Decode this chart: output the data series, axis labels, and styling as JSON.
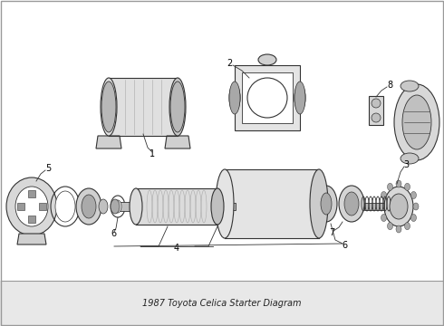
{
  "title": "1987 Toyota Celica Starter Diagram",
  "bg": "#f5f5f5",
  "lc": "#333333",
  "fc_light": "#e8e8e8",
  "fc_mid": "#c8c8c8",
  "fc_dark": "#999999",
  "fig_width": 4.9,
  "fig_height": 3.6,
  "dpi": 100
}
